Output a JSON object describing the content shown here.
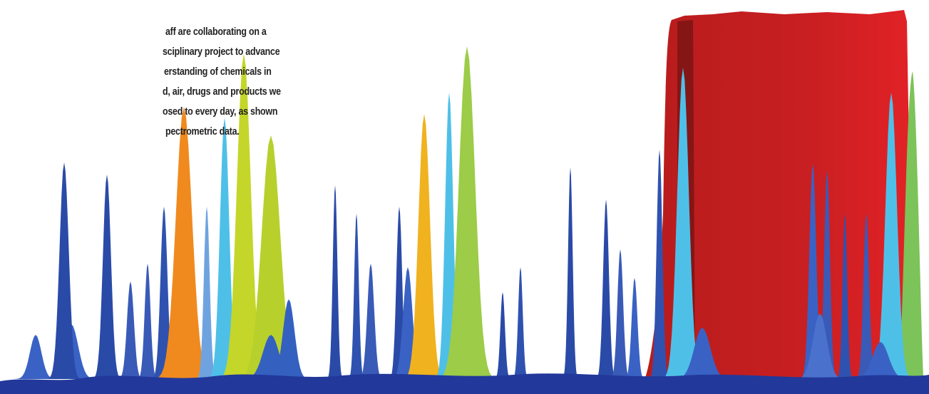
{
  "text": {
    "lines": [
      "aff are collaborating on a",
      "sciplinary project to advance",
      "erstanding of chemicals in",
      "d, air, drugs and products we",
      "osed to every day, as shown",
      "pectrometric data."
    ]
  }
}
